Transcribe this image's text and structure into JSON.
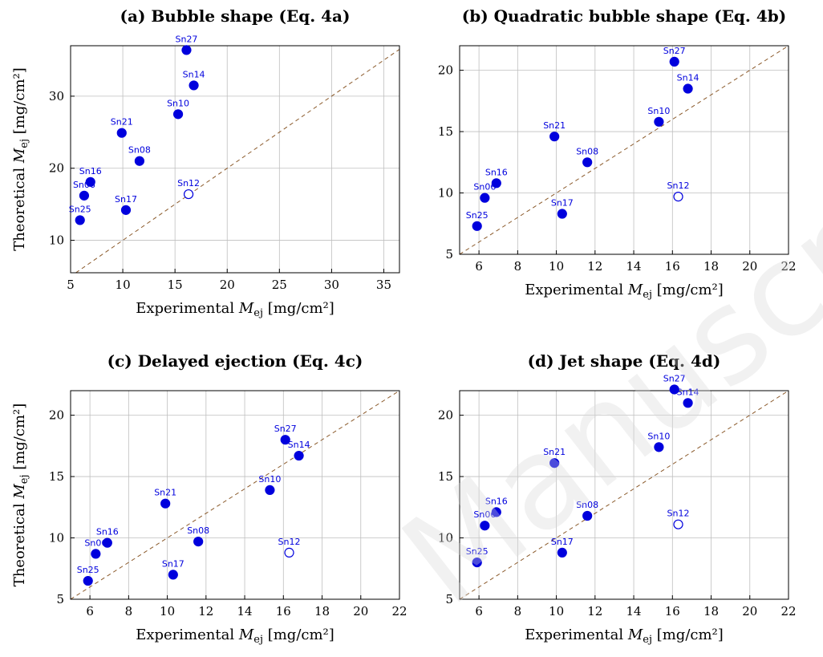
{
  "watermark": "Manuscript",
  "colors": {
    "series": "#0000dd",
    "label": "#0000dd",
    "identity": "#8b5a2b",
    "grid": "#bfbfbf",
    "frame": "#000000"
  },
  "chart_data": [
    {
      "type": "scatter",
      "title": "(a) Bubble shape (Eq. 4a)",
      "xlabel": "Experimental M_ej [mg/cm²]",
      "ylabel": "Theoretical M_ej [mg/cm²]",
      "xlim": [
        5,
        36.5
      ],
      "ylim": [
        5.5,
        37
      ],
      "xticks": [
        5,
        10,
        15,
        20,
        25,
        30,
        35
      ],
      "yticks": [
        10,
        20,
        30
      ],
      "grid": true,
      "identity_line": true,
      "points": [
        {
          "label": "Sn27",
          "x": 16.1,
          "y": 36.4,
          "filled": true
        },
        {
          "label": "Sn14",
          "x": 16.8,
          "y": 31.5,
          "filled": true
        },
        {
          "label": "Sn10",
          "x": 15.3,
          "y": 27.5,
          "filled": true
        },
        {
          "label": "Sn21",
          "x": 9.9,
          "y": 24.9,
          "filled": true
        },
        {
          "label": "Sn08",
          "x": 11.6,
          "y": 21.0,
          "filled": true
        },
        {
          "label": "Sn16",
          "x": 6.9,
          "y": 18.1,
          "filled": true
        },
        {
          "label": "Sn06",
          "x": 6.3,
          "y": 16.2,
          "filled": true
        },
        {
          "label": "Sn17",
          "x": 10.3,
          "y": 14.2,
          "filled": true
        },
        {
          "label": "Sn25",
          "x": 5.9,
          "y": 12.8,
          "filled": true
        },
        {
          "label": "Sn12",
          "x": 16.3,
          "y": 16.4,
          "filled": false
        }
      ]
    },
    {
      "type": "scatter",
      "title": "(b) Quadratic bubble shape (Eq. 4b)",
      "xlabel": "Experimental M_ej [mg/cm²]",
      "ylabel": "",
      "xlim": [
        5,
        22
      ],
      "ylim": [
        5,
        22
      ],
      "xticks": [
        6,
        8,
        10,
        12,
        14,
        16,
        18,
        20,
        22
      ],
      "yticks": [
        5,
        10,
        15,
        20
      ],
      "grid": true,
      "identity_line": true,
      "points": [
        {
          "label": "Sn27",
          "x": 16.1,
          "y": 20.7,
          "filled": true
        },
        {
          "label": "Sn14",
          "x": 16.8,
          "y": 18.5,
          "filled": true
        },
        {
          "label": "Sn10",
          "x": 15.3,
          "y": 15.8,
          "filled": true
        },
        {
          "label": "Sn21",
          "x": 9.9,
          "y": 14.6,
          "filled": true
        },
        {
          "label": "Sn08",
          "x": 11.6,
          "y": 12.5,
          "filled": true
        },
        {
          "label": "Sn16",
          "x": 6.9,
          "y": 10.8,
          "filled": true
        },
        {
          "label": "Sn06",
          "x": 6.3,
          "y": 9.6,
          "filled": true
        },
        {
          "label": "Sn17",
          "x": 10.3,
          "y": 8.3,
          "filled": true
        },
        {
          "label": "Sn25",
          "x": 5.9,
          "y": 7.3,
          "filled": true
        },
        {
          "label": "Sn12",
          "x": 16.3,
          "y": 9.7,
          "filled": false
        }
      ]
    },
    {
      "type": "scatter",
      "title": "(c) Delayed ejection (Eq. 4c)",
      "xlabel": "Experimental M_ej [mg/cm²]",
      "ylabel": "Theoretical M_ej [mg/cm²]",
      "xlim": [
        5,
        22
      ],
      "ylim": [
        5,
        22
      ],
      "xticks": [
        6,
        8,
        10,
        12,
        14,
        16,
        18,
        20,
        22
      ],
      "yticks": [
        5,
        10,
        15,
        20
      ],
      "grid": true,
      "identity_line": true,
      "points": [
        {
          "label": "Sn27",
          "x": 16.1,
          "y": 18.0,
          "filled": true
        },
        {
          "label": "Sn14",
          "x": 16.8,
          "y": 16.7,
          "filled": true
        },
        {
          "label": "Sn10",
          "x": 15.3,
          "y": 13.9,
          "filled": true
        },
        {
          "label": "Sn21",
          "x": 9.9,
          "y": 12.8,
          "filled": true
        },
        {
          "label": "Sn08",
          "x": 11.6,
          "y": 9.7,
          "filled": true
        },
        {
          "label": "Sn16",
          "x": 6.9,
          "y": 9.6,
          "filled": true
        },
        {
          "label": "Sn06",
          "x": 6.3,
          "y": 8.7,
          "filled": true
        },
        {
          "label": "Sn17",
          "x": 10.3,
          "y": 7.0,
          "filled": true
        },
        {
          "label": "Sn25",
          "x": 5.9,
          "y": 6.5,
          "filled": true
        },
        {
          "label": "Sn12",
          "x": 16.3,
          "y": 8.8,
          "filled": false
        }
      ]
    },
    {
      "type": "scatter",
      "title": "(d) Jet shape (Eq. 4d)",
      "xlabel": "Experimental M_ej [mg/cm²]",
      "ylabel": "",
      "xlim": [
        5,
        22
      ],
      "ylim": [
        5,
        22
      ],
      "xticks": [
        6,
        8,
        10,
        12,
        14,
        16,
        18,
        20,
        22
      ],
      "yticks": [
        5,
        10,
        15,
        20
      ],
      "grid": true,
      "identity_line": true,
      "points": [
        {
          "label": "Sn27",
          "x": 16.1,
          "y": 22.1,
          "filled": true
        },
        {
          "label": "Sn14",
          "x": 16.8,
          "y": 21.0,
          "filled": true
        },
        {
          "label": "Sn10",
          "x": 15.3,
          "y": 17.4,
          "filled": true
        },
        {
          "label": "Sn21",
          "x": 9.9,
          "y": 16.1,
          "filled": true
        },
        {
          "label": "Sn08",
          "x": 11.6,
          "y": 11.8,
          "filled": true
        },
        {
          "label": "Sn16",
          "x": 6.9,
          "y": 12.1,
          "filled": true
        },
        {
          "label": "Sn06",
          "x": 6.3,
          "y": 11.0,
          "filled": true
        },
        {
          "label": "Sn17",
          "x": 10.3,
          "y": 8.8,
          "filled": true
        },
        {
          "label": "Sn25",
          "x": 5.9,
          "y": 8.0,
          "filled": true
        },
        {
          "label": "Sn12",
          "x": 16.3,
          "y": 11.1,
          "filled": false
        }
      ]
    }
  ]
}
